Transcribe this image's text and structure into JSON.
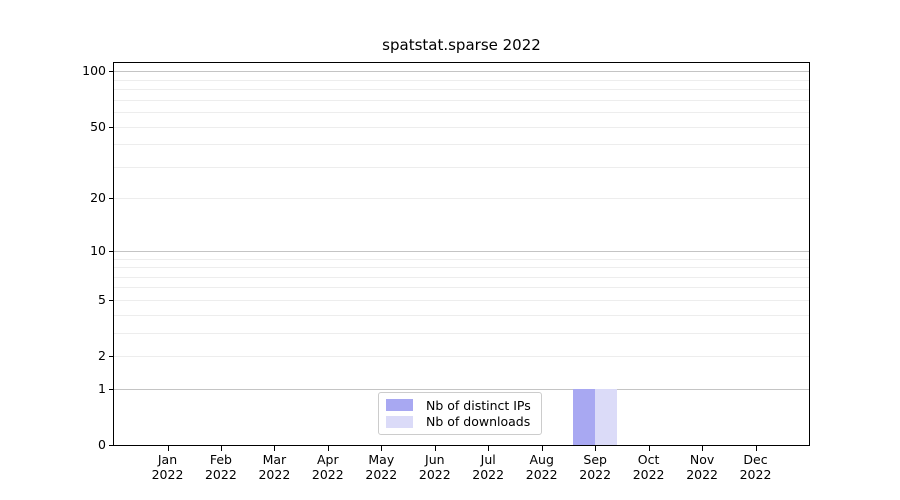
{
  "chart_data": {
    "type": "bar",
    "title": "spatstat.sparse 2022",
    "categories": [
      "Jan",
      "Feb",
      "Mar",
      "Apr",
      "May",
      "Jun",
      "Jul",
      "Aug",
      "Sep",
      "Oct",
      "Nov",
      "Dec"
    ],
    "category_year": "2022",
    "series": [
      {
        "name": "Nb of distinct IPs",
        "color": "#a8a8f2",
        "values": [
          0,
          0,
          0,
          0,
          0,
          0,
          0,
          0,
          1,
          0,
          0,
          0
        ]
      },
      {
        "name": "Nb of downloads",
        "color": "#dbdbf8",
        "values": [
          0,
          0,
          0,
          0,
          0,
          0,
          0,
          0,
          1,
          0,
          0,
          0
        ]
      }
    ],
    "xlabel": "",
    "ylabel": "",
    "y_scale": "log1p",
    "y_tick_labels": [
      0,
      1,
      2,
      5,
      10,
      20,
      50,
      100
    ],
    "y_minor_gridlines": [
      2,
      3,
      4,
      5,
      6,
      7,
      8,
      9,
      20,
      30,
      40,
      50,
      60,
      70,
      80,
      90
    ],
    "y_major_gridlines": [
      1,
      10,
      100
    ],
    "ylim": [
      0,
      111
    ],
    "grid": true,
    "legend_position": "bottom-center"
  },
  "colors": {
    "axis": "#000000",
    "major_grid": "#c4c4c4",
    "minor_grid": "#ededed",
    "text": "#000000",
    "legend_border": "#cccccc",
    "background": "#ffffff"
  }
}
